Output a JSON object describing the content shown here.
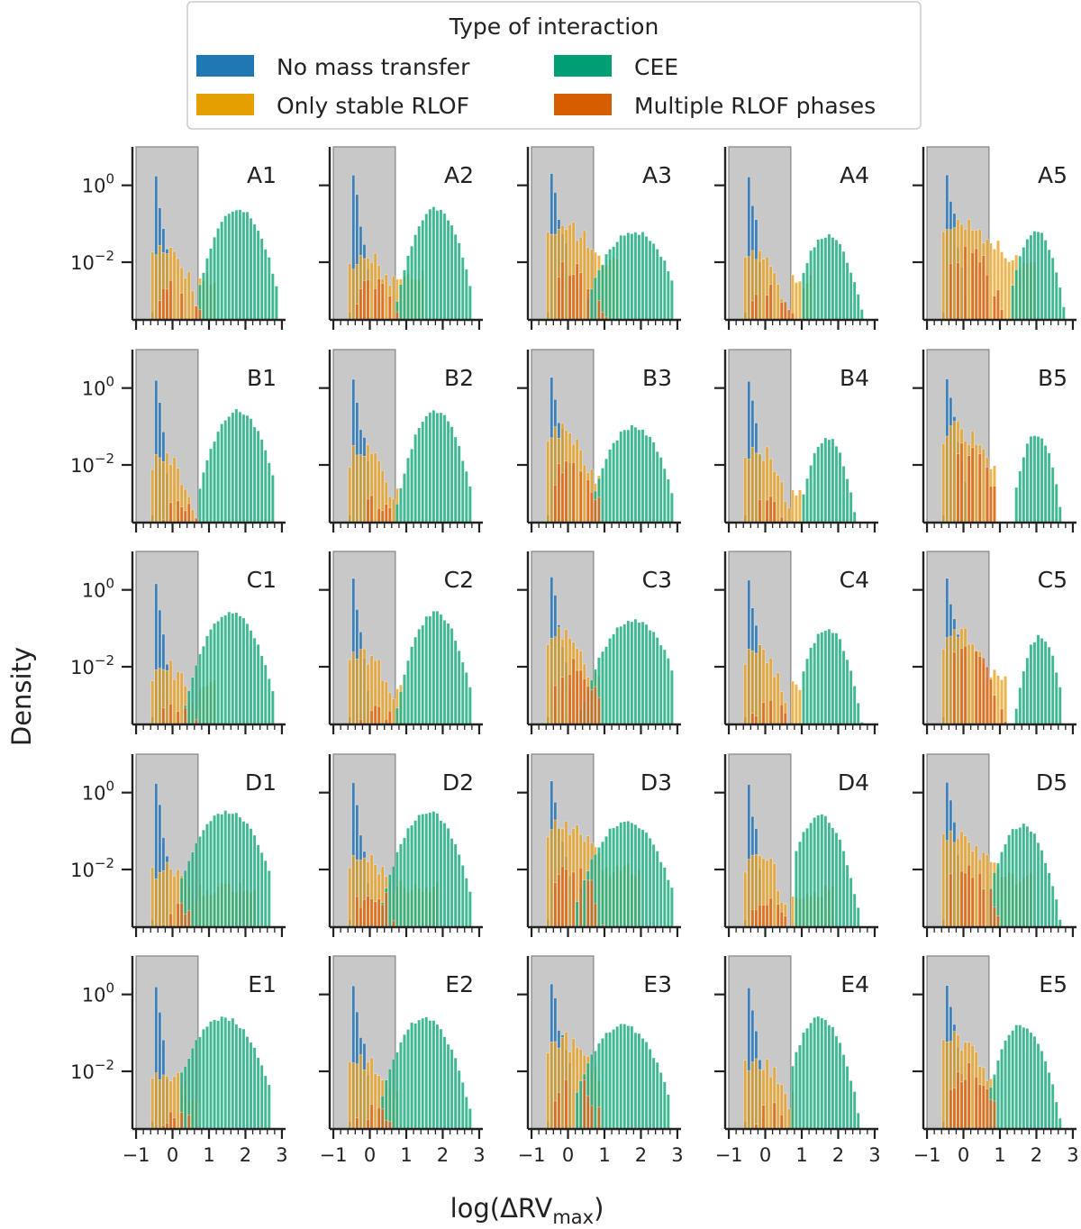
{
  "chart_data": {
    "type": "bar",
    "kind": "grid of stacked log-density histograms",
    "grid_rows": [
      "A",
      "B",
      "C",
      "D",
      "E"
    ],
    "grid_cols": [
      "1",
      "2",
      "3",
      "4",
      "5"
    ],
    "panels": [
      "A1",
      "A2",
      "A3",
      "A4",
      "A5",
      "B1",
      "B2",
      "B3",
      "B4",
      "B5",
      "C1",
      "C2",
      "C3",
      "C4",
      "C5",
      "D1",
      "D2",
      "D3",
      "D4",
      "D5",
      "E1",
      "E2",
      "E3",
      "E4",
      "E5"
    ],
    "xlabel": "log(ΔRV",
    "xlabel_sub": "max",
    "xlabel_close": ")",
    "ylabel": "Density",
    "xlim": [
      -1.1,
      3.1
    ],
    "ylim_log10": [
      -3.5,
      1.0
    ],
    "xticks": [
      -1,
      0,
      1,
      2,
      3
    ],
    "xtick_labels": [
      "−1",
      "0",
      "1",
      "2",
      "3"
    ],
    "yticks_log10": [
      0,
      -2
    ],
    "ytick_labels": [
      {
        "base": "10",
        "exp": "0"
      },
      {
        "base": "10",
        "exp": "−2"
      }
    ],
    "shaded_region_x": [
      -1.0,
      0.7
    ],
    "legend": {
      "title": "Type of interaction",
      "placement": "top-center",
      "entries": [
        {
          "key": "none",
          "label": "No mass transfer",
          "color": "#1f77b4"
        },
        {
          "key": "stable",
          "label": "Only stable RLOF",
          "color": "#e69f00"
        },
        {
          "key": "cee",
          "label": "CEE",
          "color": "#009e73"
        },
        {
          "key": "multi",
          "label": "Multiple RLOF phases",
          "color": "#d55e00"
        }
      ]
    },
    "colors": {
      "none": "#2f78b5",
      "stable": "#e8a021",
      "cee": "#1fac80",
      "multi": "#dd6416",
      "shade": "#c8c8c8",
      "shade_edge": "#8a8a8a",
      "axis": "#222222"
    },
    "series_shapes_note": "log10 density per category per panel; blue spike near x=-0.5 to -0.3, CEE hump peaking near x=1.5-2",
    "panel_params": {
      "A1": {
        "blueSpan": 0.45,
        "orPk": -1.6,
        "orW": 0.55,
        "orTail": [
          -2.4,
          1.2
        ],
        "ceeC": 1.8,
        "ceeW": 0.55,
        "ceePk": -0.6,
        "ceeLo": 0.75,
        "ceeHi": 2.9,
        "mult": -2.6
      },
      "A2": {
        "blueSpan": 0.5,
        "orPk": -1.9,
        "orW": 0.8,
        "orTail": [
          -2.3,
          1.5
        ],
        "ceeC": 1.8,
        "ceeW": 0.5,
        "ceePk": -0.6,
        "ceeLo": 0.7,
        "ceeHi": 2.8,
        "mult": -2.5
      },
      "A3": {
        "blueSpan": 0.6,
        "orPk": -1.1,
        "orW": 0.9,
        "orTail": [
          -2.0,
          1.4
        ],
        "ceeC": 1.8,
        "ceeW": 0.7,
        "ceePk": -1.2,
        "ceeLo": 0.5,
        "ceeHi": 2.9,
        "mult": -2.1
      },
      "A4": {
        "blueSpan": 0.45,
        "orPk": -1.8,
        "orW": 0.5,
        "orTail": [
          -2.5,
          1.3
        ],
        "ceeC": 1.7,
        "ceeW": 0.5,
        "ceePk": -1.3,
        "ceeLo": 1.0,
        "ceeHi": 2.9,
        "mult": -2.7
      },
      "A5": {
        "blueSpan": 0.55,
        "orPk": -1.0,
        "orW": 1.1,
        "orTail": [
          -2.0,
          2.0
        ],
        "ceeC": 2.0,
        "ceeW": 0.4,
        "ceePk": -1.2,
        "ceeLo": 1.3,
        "ceeHi": 2.8,
        "mult": -1.7
      },
      "B1": {
        "blueSpan": 0.45,
        "orPk": -1.8,
        "orW": 0.5,
        "orTail": [
          -2.6,
          0.7
        ],
        "ceeC": 1.8,
        "ceeW": 0.55,
        "ceePk": -0.6,
        "ceeLo": 0.7,
        "ceeHi": 2.8,
        "mult": -3.0
      },
      "B2": {
        "blueSpan": 0.5,
        "orPk": -1.6,
        "orW": 0.55,
        "orTail": [
          -2.5,
          0.8
        ],
        "ceeC": 1.8,
        "ceeW": 0.5,
        "ceePk": -0.6,
        "ceeLo": 0.7,
        "ceeHi": 2.8,
        "mult": -3.0
      },
      "B3": {
        "blueSpan": 0.6,
        "orPk": -1.1,
        "orW": 0.6,
        "orTail": [
          -2.4,
          0.9
        ],
        "ceeC": 1.8,
        "ceeW": 0.6,
        "ceePk": -1.0,
        "ceeLo": 0.7,
        "ceeHi": 2.9,
        "mult": -2.0
      },
      "B4": {
        "blueSpan": 0.45,
        "orPk": -1.6,
        "orW": 0.5,
        "orTail": [
          -2.6,
          1.0
        ],
        "ceeC": 1.7,
        "ceeW": 0.4,
        "ceePk": -1.3,
        "ceeLo": 1.0,
        "ceeHi": 2.6,
        "mult": -3.0
      },
      "B5": {
        "blueSpan": 0.55,
        "orPk": -1.1,
        "orW": 0.7,
        "orTail": [
          -2.2,
          0.9
        ],
        "ceeC": 2.0,
        "ceeW": 0.35,
        "ceePk": -1.2,
        "ceeLo": 1.4,
        "ceeHi": 2.7,
        "mult": -1.6
      },
      "C1": {
        "blueSpan": 0.45,
        "orPk": -2.0,
        "orW": 0.6,
        "orTail": [
          -2.5,
          1.2
        ],
        "ceeC": 1.6,
        "ceeW": 0.6,
        "ceePk": -0.6,
        "ceeLo": 0.3,
        "ceeHi": 2.8,
        "mult": -3.0
      },
      "C2": {
        "blueSpan": 0.5,
        "orPk": -1.7,
        "orW": 0.6,
        "orTail": [
          -2.5,
          0.9
        ],
        "ceeC": 1.8,
        "ceeW": 0.5,
        "ceePk": -0.6,
        "ceeLo": 0.7,
        "ceeHi": 2.8,
        "mult": -3.0
      },
      "C3": {
        "blueSpan": 0.6,
        "orPk": -1.1,
        "orW": 0.6,
        "orTail": [
          -2.3,
          0.9
        ],
        "ceeC": 1.8,
        "ceeW": 0.7,
        "ceePk": -0.8,
        "ceeLo": 0.3,
        "ceeHi": 2.9,
        "mult": -2.0
      },
      "C4": {
        "blueSpan": 0.45,
        "orPk": -1.6,
        "orW": 0.5,
        "orTail": [
          -2.5,
          1.0
        ],
        "ceeC": 1.7,
        "ceeW": 0.45,
        "ceePk": -1.0,
        "ceeLo": 1.0,
        "ceeHi": 2.7,
        "mult": -3.0
      },
      "C5": {
        "blueSpan": 0.55,
        "orPk": -1.1,
        "orW": 0.6,
        "orTail": [
          -2.2,
          1.2
        ],
        "ceeC": 2.1,
        "ceeW": 0.35,
        "ceePk": -1.2,
        "ceeLo": 1.4,
        "ceeHi": 2.7,
        "mult": -1.6
      },
      "D1": {
        "blueSpan": 0.45,
        "orPk": -2.0,
        "orW": 0.7,
        "orTail": [
          -2.5,
          2.3
        ],
        "ceeC": 1.5,
        "ceeW": 0.7,
        "ceePk": -0.5,
        "ceeLo": 0.2,
        "ceeHi": 2.7,
        "mult": -3.0
      },
      "D2": {
        "blueSpan": 0.5,
        "orPk": -1.7,
        "orW": 0.7,
        "orTail": [
          -2.4,
          1.9
        ],
        "ceeC": 1.6,
        "ceeW": 0.6,
        "ceePk": -0.5,
        "ceeLo": 0.3,
        "ceeHi": 2.8,
        "mult": -2.6
      },
      "D3": {
        "blueSpan": 0.6,
        "orPk": -0.9,
        "orW": 0.9,
        "orTail": [
          -2.0,
          2.0
        ],
        "ceeC": 1.6,
        "ceeW": 0.7,
        "ceePk": -0.75,
        "ceeLo": 0.2,
        "ceeHi": 2.9,
        "mult": -2.0
      },
      "D4": {
        "blueSpan": 0.45,
        "orPk": -1.6,
        "orW": 0.5,
        "orTail": [
          -2.6,
          1.9
        ],
        "ceeC": 1.5,
        "ceeW": 0.5,
        "ceePk": -0.6,
        "ceeLo": 0.8,
        "ceeHi": 2.8,
        "mult": -2.8
      },
      "D5": {
        "blueSpan": 0.55,
        "orPk": -1.2,
        "orW": 0.9,
        "orTail": [
          -2.2,
          1.9
        ],
        "ceeC": 1.6,
        "ceeW": 0.5,
        "ceePk": -0.85,
        "ceeLo": 0.7,
        "ceeHi": 2.7,
        "mult": -2.0
      },
      "E1": {
        "blueSpan": 0.45,
        "orPk": -2.1,
        "orW": 0.7,
        "orTail": [
          -2.6,
          0.7
        ],
        "ceeC": 1.4,
        "ceeW": 0.7,
        "ceePk": -0.6,
        "ceeLo": 0.2,
        "ceeHi": 2.7,
        "mult": -3.0
      },
      "E2": {
        "blueSpan": 0.5,
        "orPk": -1.8,
        "orW": 0.7,
        "orTail": [
          -2.5,
          0.8
        ],
        "ceeC": 1.5,
        "ceeW": 0.6,
        "ceePk": -0.6,
        "ceeLo": 0.3,
        "ceeHi": 2.8,
        "mult": -3.0
      },
      "E3": {
        "blueSpan": 0.6,
        "orPk": -1.2,
        "orW": 0.8,
        "orTail": [
          -2.2,
          0.9
        ],
        "ceeC": 1.5,
        "ceeW": 0.7,
        "ceePk": -0.8,
        "ceeLo": 0.2,
        "ceeHi": 2.8,
        "mult": -2.2
      },
      "E4": {
        "blueSpan": 0.45,
        "orPk": -1.7,
        "orW": 0.6,
        "orTail": [
          -2.6,
          0.8
        ],
        "ceeC": 1.5,
        "ceeW": 0.5,
        "ceePk": -0.6,
        "ceeLo": 0.7,
        "ceeHi": 2.8,
        "mult": -3.0
      },
      "E5": {
        "blueSpan": 0.55,
        "orPk": -1.2,
        "orW": 0.7,
        "orTail": [
          -2.2,
          0.9
        ],
        "ceeC": 1.6,
        "ceeW": 0.5,
        "ceePk": -0.8,
        "ceeLo": 0.7,
        "ceeHi": 2.7,
        "mult": -2.0
      }
    }
  }
}
